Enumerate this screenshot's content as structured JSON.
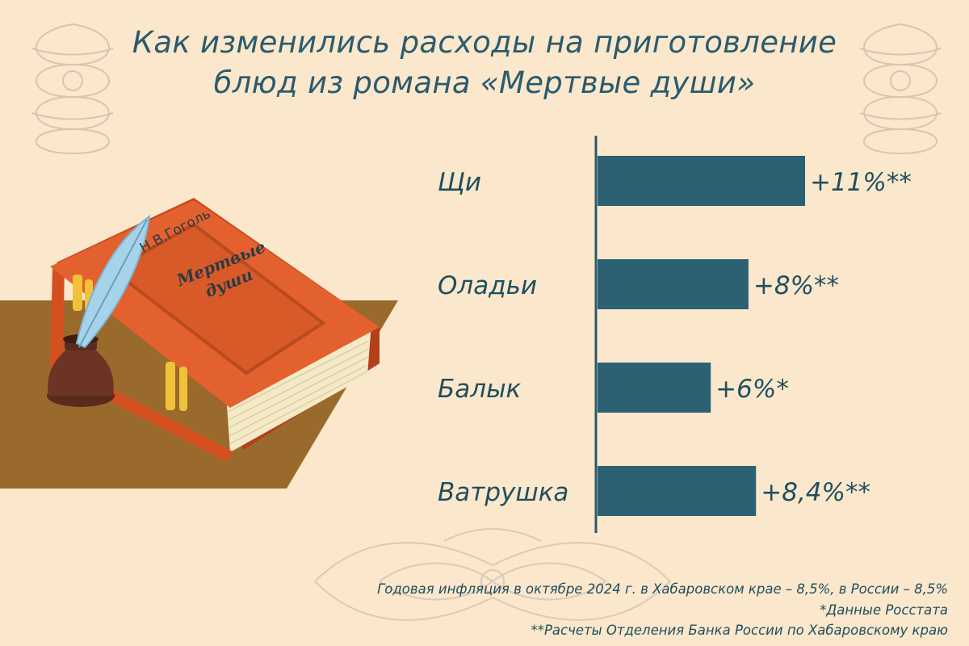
{
  "title": {
    "line1": "Как изменились расходы на приготовление",
    "line2": "блюд из романа «Мертвые души»"
  },
  "book": {
    "author": "Н.В.Гоголь",
    "title_line1": "Мертвые",
    "title_line2": "души"
  },
  "chart_data": {
    "type": "bar",
    "orientation": "horizontal",
    "categories": [
      "Щи",
      "Оладьи",
      "Балык",
      "Ватрушка"
    ],
    "values": [
      11,
      8,
      6,
      8.4
    ],
    "data_labels": [
      "+11%**",
      "+8%**",
      "+6%*",
      "+8,4%**"
    ],
    "title": "Как изменились расходы на приготовление блюд из романа «Мертвые души»",
    "xlabel": "",
    "ylabel": "",
    "xlim": [
      0,
      11
    ],
    "grid": false,
    "bar_color": "#2c6174"
  },
  "footnotes": {
    "line1": "Годовая инфляция в октябре 2024 г. в Хабаровском крае – 8,5%, в России – 8,5%",
    "line2": "*Данные Росстата",
    "line3": "**Расчеты Отделения Банка России по Хабаровскому краю"
  },
  "colors": {
    "background": "#fbe7cb",
    "title": "#2a5b6e",
    "bar": "#2c6174",
    "text": "#1f4f60",
    "book_cover": "#e2612e",
    "table": "#9a6a2c",
    "ornament": "#d8c4b4"
  },
  "icons": [
    "ornament-flourish",
    "book",
    "quill",
    "inkwell"
  ]
}
